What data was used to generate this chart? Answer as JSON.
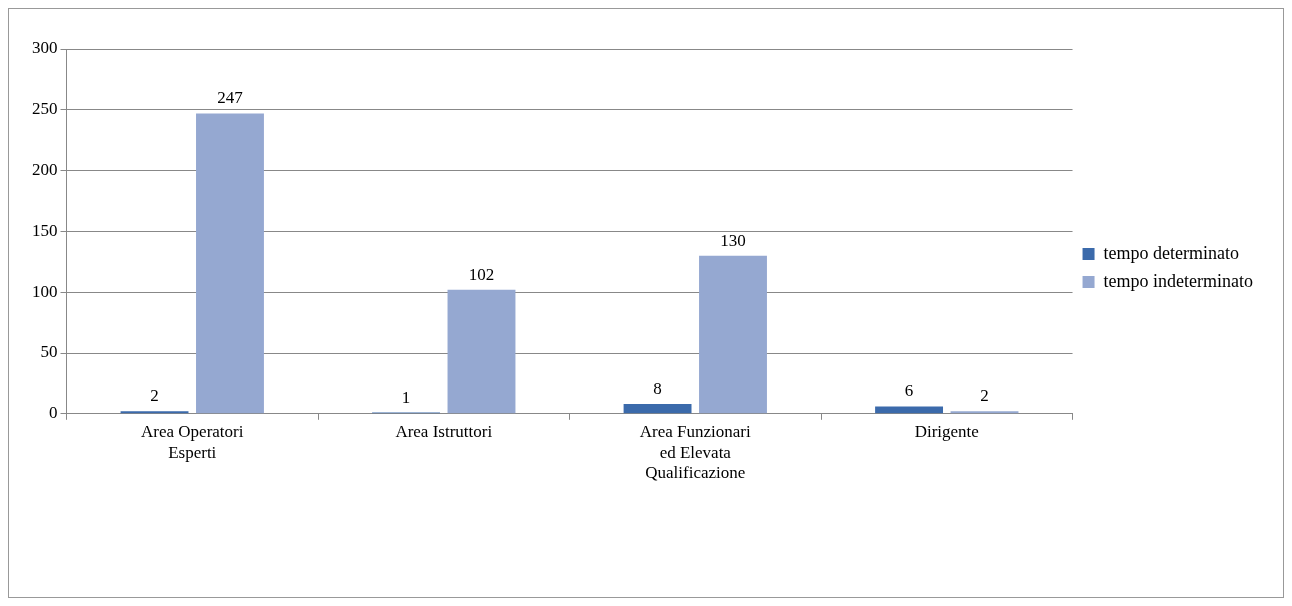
{
  "chart_data": {
    "type": "bar",
    "categories": [
      "Area Operatori Esperti",
      "Area Istruttori",
      "Area Funzionari ed Elevata Qualificazione",
      "Dirigente"
    ],
    "series": [
      {
        "name": "tempo determinato",
        "color": "#3b6aab",
        "values": [
          2,
          1,
          8,
          6
        ]
      },
      {
        "name": "tempo indeterminato",
        "color": "#95a8d1",
        "values": [
          247,
          102,
          130,
          2
        ]
      }
    ],
    "ylim": [
      0,
      300
    ],
    "yticks": [
      0,
      50,
      100,
      150,
      200,
      250,
      300
    ],
    "grid": "y",
    "legend": "right",
    "data_labels": true
  }
}
